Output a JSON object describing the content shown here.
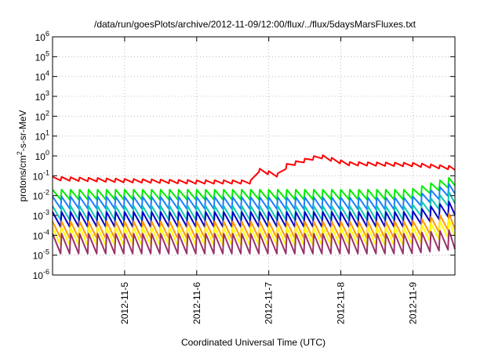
{
  "chart_data": {
    "type": "line",
    "title": "/data/run/goesPlots/archive/2012-11-09/12:00/flux/../flux/5daysMarsFluxes.txt",
    "xlabel": "Coordinated Universal Time (UTC)",
    "ylabel": "protons/cm²-s-sr-MeV",
    "ylabel_parts": {
      "main": "protons/cm",
      "sup": "2",
      "rest": "-s-sr-MeV"
    },
    "yscale": "log",
    "ylim": [
      1e-06,
      1000000.0
    ],
    "xlim": [
      "2012-11-04T00:00",
      "2012-11-09T14:00"
    ],
    "grid": true,
    "x_ticks": [
      "2012-11-5",
      "2012-11-6",
      "2012-11-7",
      "2012-11-8",
      "2012-11-9"
    ],
    "y_ticks": [
      {
        "base": "10",
        "exp": "-6"
      },
      {
        "base": "10",
        "exp": "-5"
      },
      {
        "base": "10",
        "exp": "-4"
      },
      {
        "base": "10",
        "exp": "-3"
      },
      {
        "base": "10",
        "exp": "-2"
      },
      {
        "base": "10",
        "exp": "-1"
      },
      {
        "base": "10",
        "exp": "0"
      },
      {
        "base": "10",
        "exp": "1"
      },
      {
        "base": "10",
        "exp": "2"
      },
      {
        "base": "10",
        "exp": "3"
      },
      {
        "base": "10",
        "exp": "4"
      },
      {
        "base": "10",
        "exp": "5"
      },
      {
        "base": "10",
        "exp": "6"
      }
    ],
    "series": [
      {
        "color": "#ff0000",
        "style": "sawtooth-envelope",
        "sawtooth_depth_decades": 0.18,
        "envelope": [
          {
            "t": "2012-11-04T00:00",
            "v": 0.09
          },
          {
            "t": "2012-11-05T00:00",
            "v": 0.07
          },
          {
            "t": "2012-11-06T00:00",
            "v": 0.06
          },
          {
            "t": "2012-11-06T18:00",
            "v": 0.06
          },
          {
            "t": "2012-11-06T20:00",
            "v": 0.25
          },
          {
            "t": "2012-11-07T04:00",
            "v": 0.12
          },
          {
            "t": "2012-11-07T06:00",
            "v": 0.4
          },
          {
            "t": "2012-11-07T17:00",
            "v": 1.2
          },
          {
            "t": "2012-11-08T02:00",
            "v": 0.5
          },
          {
            "t": "2012-11-09T00:00",
            "v": 0.45
          },
          {
            "t": "2012-11-09T14:00",
            "v": 0.3
          }
        ]
      },
      {
        "color": "#00ee00",
        "style": "sawtooth-envelope",
        "sawtooth_depth_decades": 0.5,
        "envelope": [
          {
            "t": "2012-11-04T00:00",
            "v": 0.02
          },
          {
            "t": "2012-11-08T23:00",
            "v": 0.02
          },
          {
            "t": "2012-11-09T14:00",
            "v": 0.1
          }
        ]
      },
      {
        "color": "#1a7fff",
        "style": "sawtooth-envelope",
        "sawtooth_depth_decades": 0.6,
        "envelope": [
          {
            "t": "2012-11-04T00:00",
            "v": 0.009
          },
          {
            "t": "2012-11-08T23:00",
            "v": 0.008
          },
          {
            "t": "2012-11-09T14:00",
            "v": 0.05
          }
        ]
      },
      {
        "color": "#11c8b0",
        "style": "sawtooth-envelope",
        "sawtooth_depth_decades": 0.7,
        "envelope": [
          {
            "t": "2012-11-04T00:00",
            "v": 0.003
          },
          {
            "t": "2012-11-08T23:00",
            "v": 0.003
          },
          {
            "t": "2012-11-09T14:00",
            "v": 0.02
          }
        ]
      },
      {
        "color": "#0000cc",
        "style": "sawtooth-envelope",
        "sawtooth_depth_decades": 0.75,
        "envelope": [
          {
            "t": "2012-11-04T00:00",
            "v": 0.0015
          },
          {
            "t": "2012-11-08T23:00",
            "v": 0.0015
          },
          {
            "t": "2012-11-09T14:00",
            "v": 0.006
          }
        ]
      },
      {
        "color": "#ff9900",
        "style": "sawtooth-envelope",
        "sawtooth_depth_decades": 0.85,
        "envelope": [
          {
            "t": "2012-11-04T00:00",
            "v": 0.0005
          },
          {
            "t": "2012-11-08T23:00",
            "v": 0.0005
          },
          {
            "t": "2012-11-09T14:00",
            "v": 0.0015
          }
        ]
      },
      {
        "color": "#ffff00",
        "style": "sawtooth-envelope",
        "sawtooth_depth_decades": 0.9,
        "envelope": [
          {
            "t": "2012-11-04T00:00",
            "v": 0.00025
          },
          {
            "t": "2012-11-08T23:00",
            "v": 0.00025
          },
          {
            "t": "2012-11-09T14:00",
            "v": 0.0007
          }
        ]
      },
      {
        "color": "#99336b",
        "style": "sawtooth-envelope",
        "sawtooth_depth_decades": 1.0,
        "envelope": [
          {
            "t": "2012-11-04T00:00",
            "v": 0.00012
          },
          {
            "t": "2012-11-08T23:00",
            "v": 0.00012
          },
          {
            "t": "2012-11-09T14:00",
            "v": 0.0002
          }
        ]
      }
    ]
  }
}
